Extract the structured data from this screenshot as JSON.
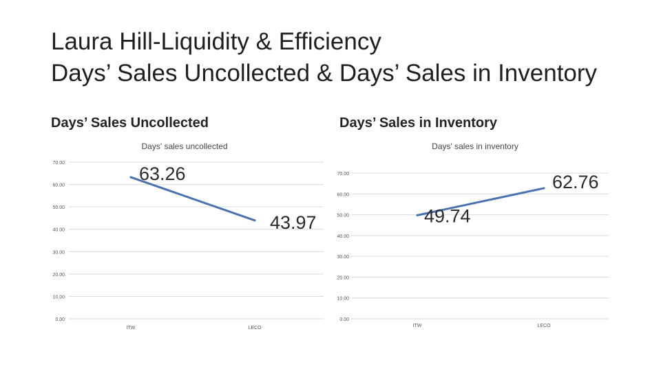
{
  "slide": {
    "title_line1": "Laura Hill-Liquidity & Efficiency",
    "title_line2": "Days’ Sales Uncollected & Days’ Sales in Inventory",
    "left_heading": "Days’ Sales Uncollected",
    "right_heading": "Days’ Sales in Inventory"
  },
  "chart_data": [
    {
      "type": "line",
      "title": "Days' sales uncollected",
      "categories": [
        "ITW",
        "LECO"
      ],
      "series": [
        {
          "values": [
            63.26,
            43.97
          ]
        }
      ],
      "data_labels": [
        "63.26",
        "43.97"
      ],
      "y_ticks": [
        "0.00",
        "10.00",
        "20.00",
        "30.00",
        "40.00",
        "50.00",
        "60.00",
        "70.00"
      ],
      "ylim": [
        0,
        70
      ],
      "grid": true,
      "legend": "none",
      "line_color": "#4a72b0"
    },
    {
      "type": "line",
      "title": "Days' sales in inventory",
      "categories": [
        "ITW",
        "LECO"
      ],
      "series": [
        {
          "values": [
            49.74,
            62.76
          ]
        }
      ],
      "data_labels": [
        "49.74",
        "62.76"
      ],
      "y_ticks": [
        "0.00",
        "10.00",
        "20.00",
        "30.00",
        "40.00",
        "50.00",
        "60.00",
        "70.00"
      ],
      "ylim": [
        0,
        70
      ],
      "grid": true,
      "legend": "none",
      "line_color": "#4a72b0"
    }
  ]
}
